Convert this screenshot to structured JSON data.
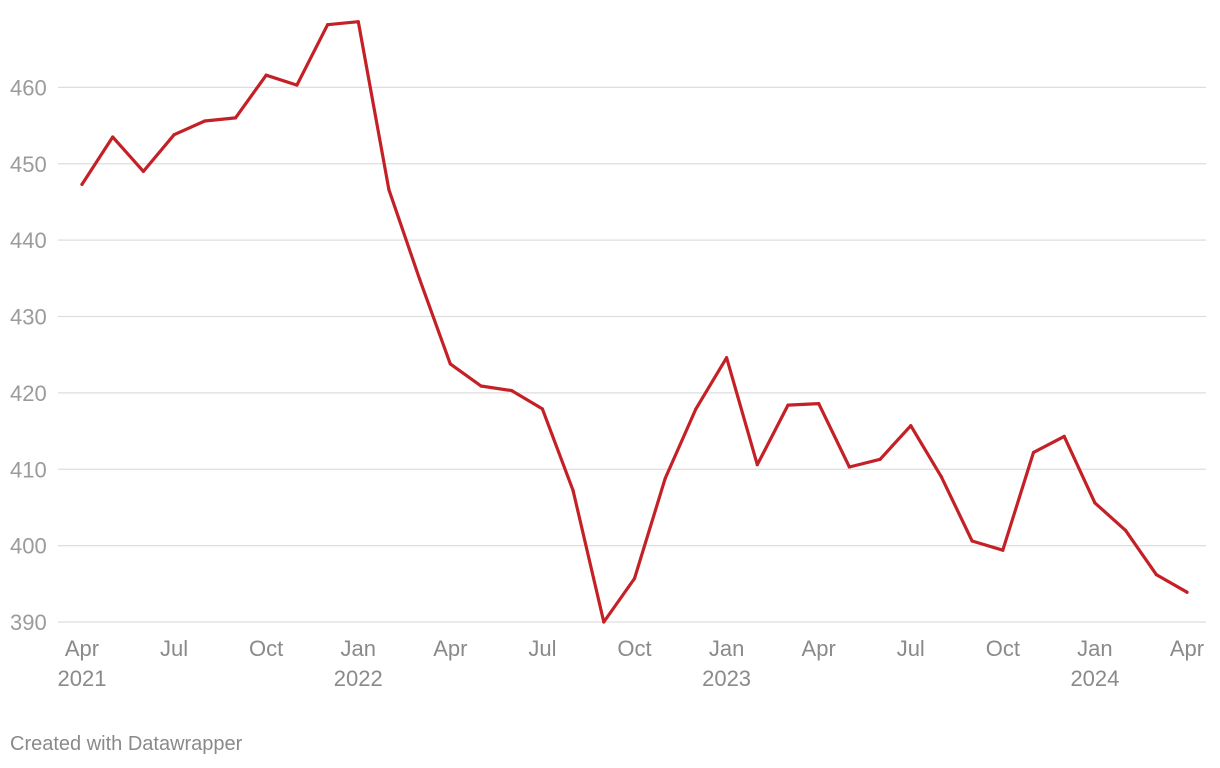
{
  "footer": {
    "credit": "Created with Datawrapper"
  },
  "chart_data": {
    "type": "line",
    "title": "",
    "xlabel": "",
    "ylabel": "",
    "grid": true,
    "ylim": [
      390,
      470
    ],
    "yticks": [
      390,
      400,
      410,
      420,
      430,
      440,
      450,
      460
    ],
    "xlim": [
      "2021-04",
      "2024-04"
    ],
    "xticks": [
      {
        "date": "2021-04",
        "label": "Apr",
        "year": "2021"
      },
      {
        "date": "2021-07",
        "label": "Jul",
        "year": ""
      },
      {
        "date": "2021-10",
        "label": "Oct",
        "year": ""
      },
      {
        "date": "2022-01",
        "label": "Jan",
        "year": "2022"
      },
      {
        "date": "2022-04",
        "label": "Apr",
        "year": ""
      },
      {
        "date": "2022-07",
        "label": "Jul",
        "year": ""
      },
      {
        "date": "2022-10",
        "label": "Oct",
        "year": ""
      },
      {
        "date": "2023-01",
        "label": "Jan",
        "year": "2023"
      },
      {
        "date": "2023-04",
        "label": "Apr",
        "year": ""
      },
      {
        "date": "2023-07",
        "label": "Jul",
        "year": ""
      },
      {
        "date": "2023-10",
        "label": "Oct",
        "year": ""
      },
      {
        "date": "2024-01",
        "label": "Jan",
        "year": "2024"
      },
      {
        "date": "2024-04",
        "label": "Apr",
        "year": ""
      }
    ],
    "series": [
      {
        "color": "#c42127",
        "points": [
          {
            "x": "2021-04",
            "y": 447.3
          },
          {
            "x": "2021-05",
            "y": 453.5
          },
          {
            "x": "2021-06",
            "y": 449.0
          },
          {
            "x": "2021-07",
            "y": 453.8
          },
          {
            "x": "2021-08",
            "y": 455.6
          },
          {
            "x": "2021-09",
            "y": 456.0
          },
          {
            "x": "2021-10",
            "y": 461.6
          },
          {
            "x": "2021-11",
            "y": 460.3
          },
          {
            "x": "2021-12",
            "y": 468.2
          },
          {
            "x": "2022-01",
            "y": 468.6
          },
          {
            "x": "2022-02",
            "y": 446.6
          },
          {
            "x": "2022-03",
            "y": 434.9
          },
          {
            "x": "2022-04",
            "y": 423.8
          },
          {
            "x": "2022-05",
            "y": 420.9
          },
          {
            "x": "2022-06",
            "y": 420.3
          },
          {
            "x": "2022-07",
            "y": 417.9
          },
          {
            "x": "2022-08",
            "y": 407.2
          },
          {
            "x": "2022-09",
            "y": 390.0
          },
          {
            "x": "2022-10",
            "y": 395.7
          },
          {
            "x": "2022-11",
            "y": 408.8
          },
          {
            "x": "2022-12",
            "y": 417.9
          },
          {
            "x": "2023-01",
            "y": 424.6
          },
          {
            "x": "2023-02",
            "y": 410.6
          },
          {
            "x": "2023-03",
            "y": 418.4
          },
          {
            "x": "2023-04",
            "y": 418.6
          },
          {
            "x": "2023-05",
            "y": 410.3
          },
          {
            "x": "2023-06",
            "y": 411.3
          },
          {
            "x": "2023-07",
            "y": 415.7
          },
          {
            "x": "2023-08",
            "y": 409.0
          },
          {
            "x": "2023-09",
            "y": 400.6
          },
          {
            "x": "2023-10",
            "y": 399.4
          },
          {
            "x": "2023-11",
            "y": 412.2
          },
          {
            "x": "2023-12",
            "y": 414.3
          },
          {
            "x": "2024-01",
            "y": 405.6
          },
          {
            "x": "2024-02",
            "y": 402.0
          },
          {
            "x": "2024-03",
            "y": 396.2
          },
          {
            "x": "2024-04",
            "y": 393.9
          }
        ]
      }
    ]
  }
}
